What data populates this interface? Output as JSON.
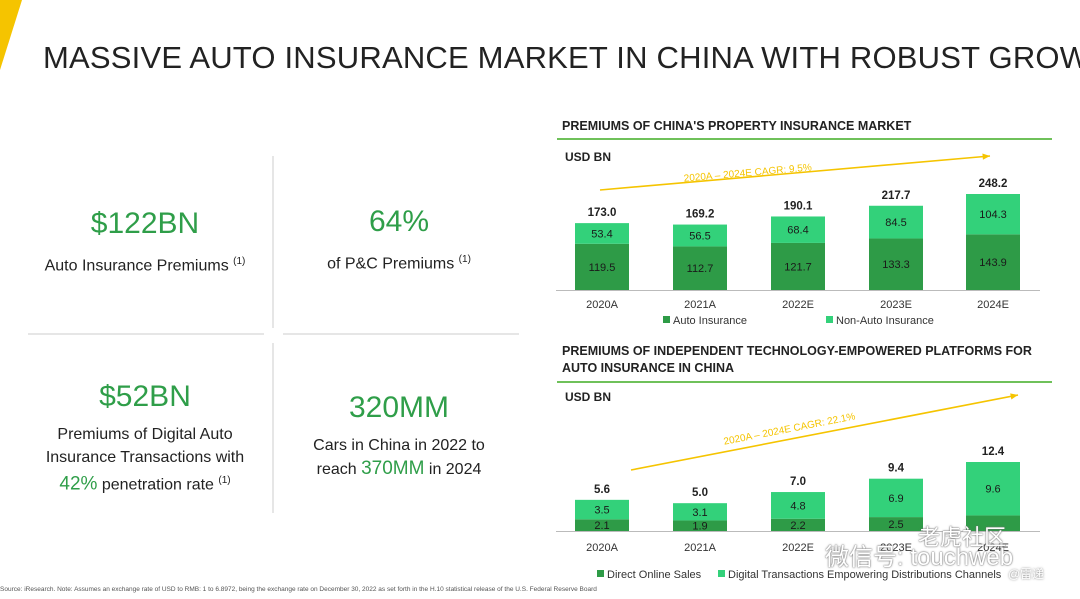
{
  "title": "MASSIVE AUTO INSURANCE MARKET IN CHINA WITH ROBUST GROWTH",
  "stats": [
    {
      "value": "$122BN",
      "label": "Auto Insurance Premiums",
      "note": "(1)"
    },
    {
      "value": "64%",
      "label": "of P&C Premiums",
      "note": "(1)"
    },
    {
      "value": "$52BN",
      "label_lines": [
        "Premiums of Digital Auto",
        "Insurance Transactions with"
      ],
      "highlight": "42%",
      "label_tail": " penetration rate",
      "note": "(1)"
    },
    {
      "value": "320MM",
      "label_line1": "Cars in China in 2022 to",
      "label_pre": "reach ",
      "highlight": "370MM",
      "label_post": " in 2024"
    }
  ],
  "colors": {
    "dark_green": "#2e9b47",
    "light_green": "#33d17a",
    "cagr_arrow": "#f5c400",
    "accent": "#2f9e49"
  },
  "chart_data": [
    {
      "type": "bar",
      "stacked": true,
      "title": "PREMIUMS OF CHINA'S PROPERTY INSURANCE MARKET",
      "unit": "USD BN",
      "categories": [
        "2020A",
        "2021A",
        "2022E",
        "2023E",
        "2024E"
      ],
      "series": [
        {
          "name": "Auto Insurance",
          "values": [
            119.5,
            112.7,
            121.7,
            133.3,
            143.9
          ]
        },
        {
          "name": "Non-Auto Insurance",
          "values": [
            53.4,
            56.5,
            68.4,
            84.5,
            104.3
          ]
        }
      ],
      "totals": [
        173.0,
        169.2,
        190.1,
        217.7,
        248.2
      ],
      "total_labels": [
        "173.0",
        "169.2",
        "190.1",
        "217.7",
        "248.2"
      ],
      "labels": [
        [
          "119.5",
          "112.7",
          "121.7",
          "133.3",
          "143.9"
        ],
        [
          "53.4",
          "56.5",
          "68.4",
          "84.5",
          "104.3"
        ]
      ],
      "ylim": [
        0,
        260
      ],
      "annotation": "2020A – 2024E CAGR: 9.5%",
      "legend": "bottom"
    },
    {
      "type": "bar",
      "stacked": true,
      "title_lines": [
        "PREMIUMS OF INDEPENDENT TECHNOLOGY-EMPOWERED PLATFORMS FOR",
        "AUTO INSURANCE IN CHINA"
      ],
      "unit": "USD BN",
      "categories": [
        "2020A",
        "2021A",
        "2022E",
        "2023E",
        "2024E"
      ],
      "series": [
        {
          "name": "Direct Online Sales",
          "values": [
            2.1,
            1.9,
            2.2,
            2.5,
            2.8
          ]
        },
        {
          "name": "Digital Transactions Empowering Distributions Channels",
          "values": [
            3.5,
            3.1,
            4.8,
            6.9,
            9.6
          ]
        }
      ],
      "totals": [
        5.6,
        5.0,
        7.0,
        9.4,
        12.4
      ],
      "total_labels": [
        "5.6",
        "5.0",
        "7.0",
        "9.4",
        "12.4"
      ],
      "labels": [
        [
          "2.1",
          "1.9",
          "2.2",
          "2.5",
          ""
        ],
        [
          "3.5",
          "3.1",
          "4.8",
          "6.9",
          "9.6"
        ]
      ],
      "ylim": [
        0,
        14
      ],
      "annotation": "2020A – 2024E CAGR: 22.1%",
      "legend": "bottom"
    }
  ],
  "footnote": "Source: iResearch. Note: Assumes an exchange rate of USD to RMB: 1 to 6.8972, being the exchange rate on December 30, 2022 as set forth in the H.10 statistical release of the U.S. Federal Reserve Board",
  "watermark": {
    "line1": "老虎社区",
    "line2": "微信号: touchweb",
    "line3": "@雷递"
  }
}
